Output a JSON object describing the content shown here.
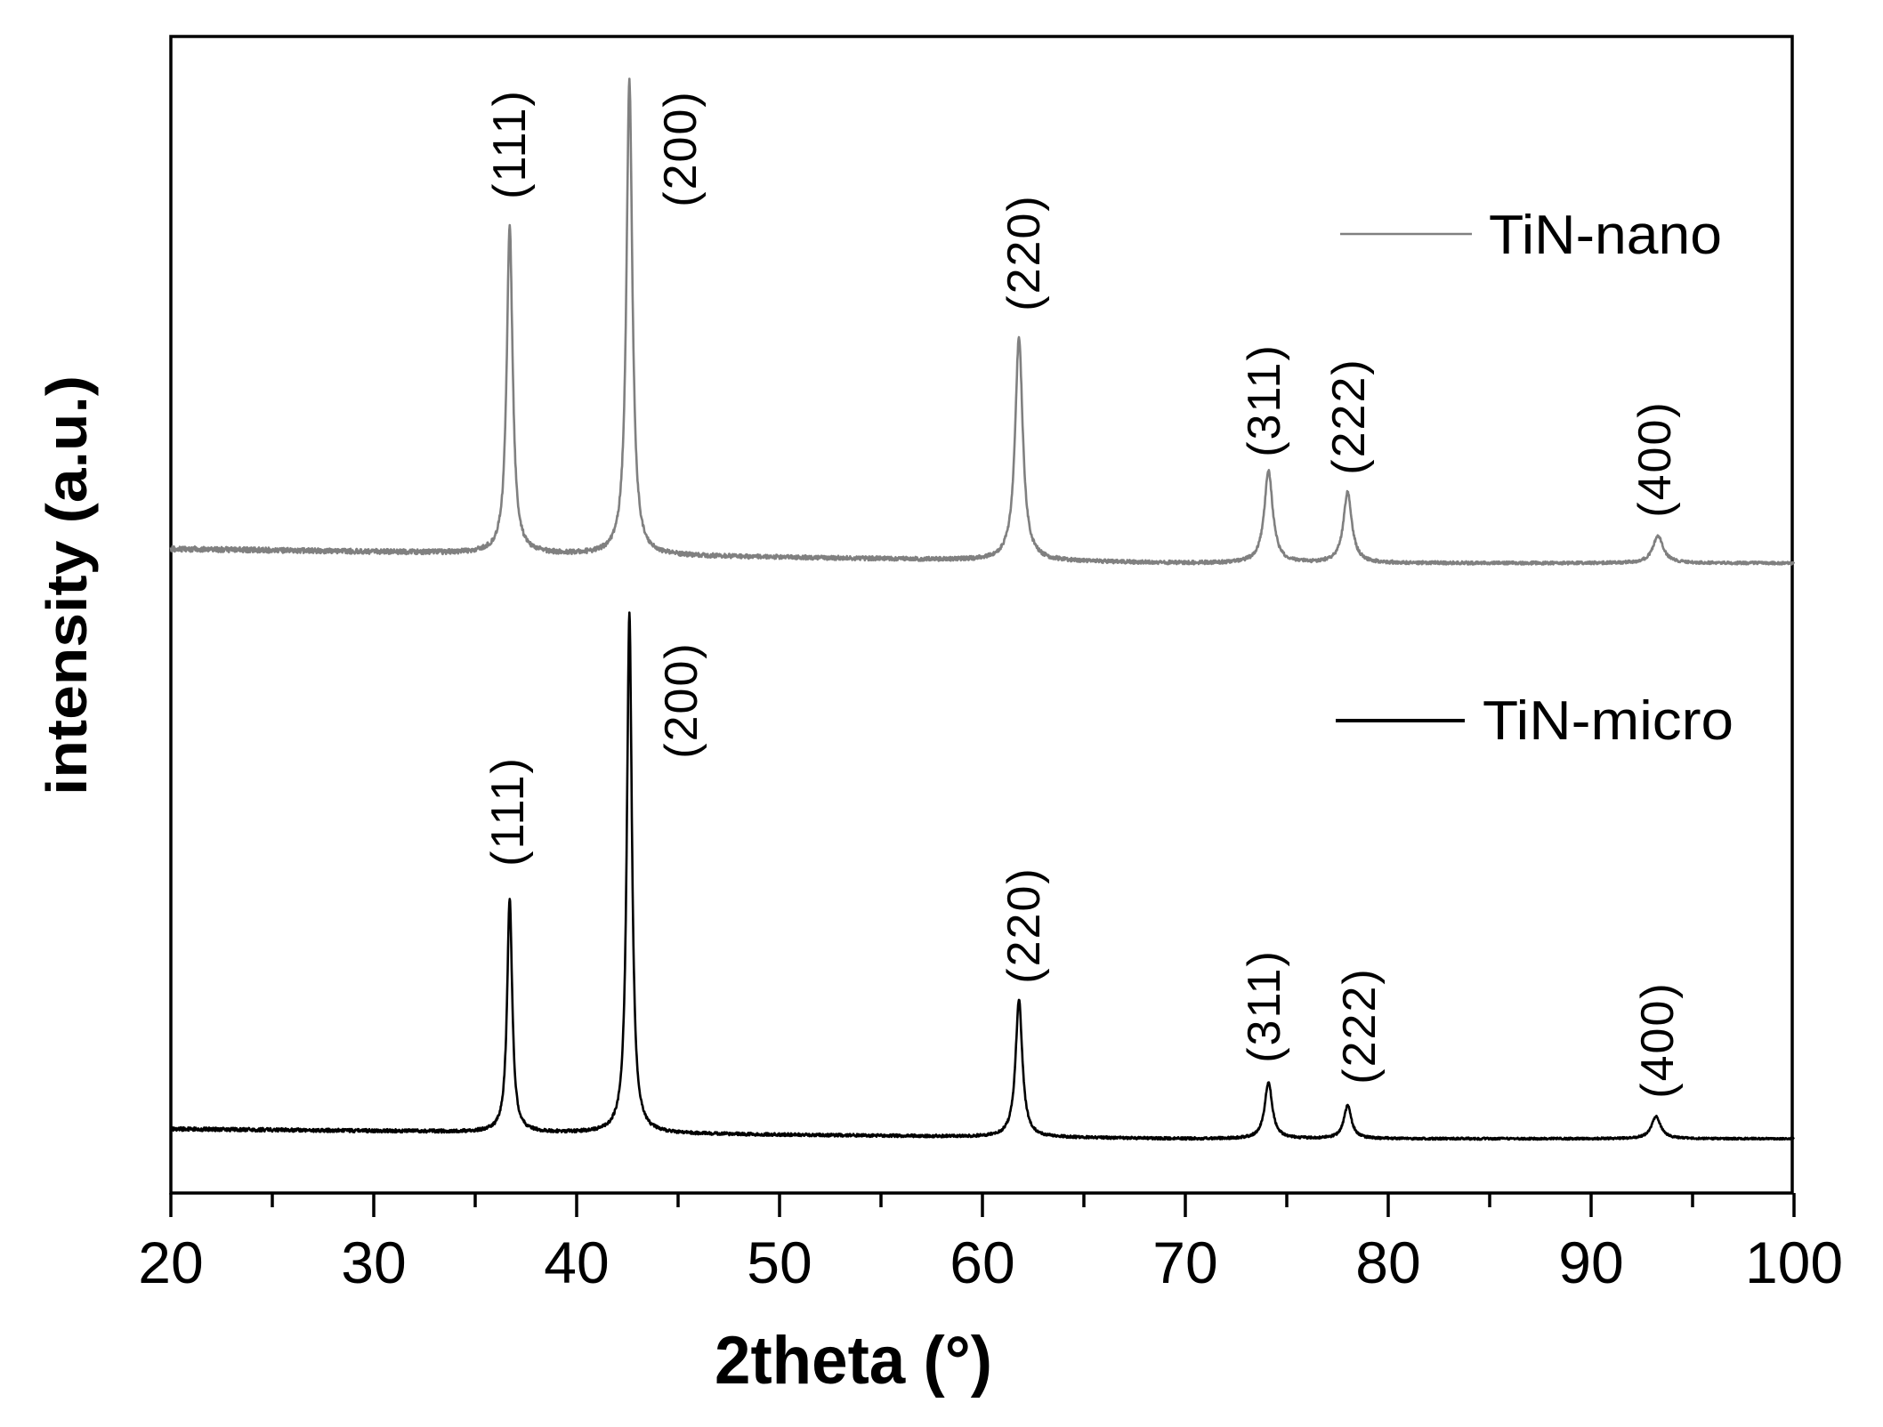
{
  "chart_data": {
    "type": "line",
    "title": "",
    "xlabel": "2theta (°)",
    "ylabel": "intensity (a.u.)",
    "xlim": [
      20,
      100
    ],
    "x_ticks": [
      20,
      30,
      40,
      50,
      60,
      70,
      80,
      90,
      100
    ],
    "x_minor_ticks": [
      25,
      35,
      45,
      55,
      65,
      75,
      85,
      95
    ],
    "y_ticks": [],
    "grid": false,
    "legend_position": "inside-right",
    "series": [
      {
        "name": "TiN-nano",
        "color": "#808080",
        "offset": 1.0,
        "baseline_start": 0.0,
        "baseline_end": -0.03,
        "peaks": [
          {
            "hkl": "(111)",
            "two_theta": 36.7,
            "intensity": 367,
            "fwhm": 0.35
          },
          {
            "hkl": "(200)",
            "two_theta": 42.6,
            "intensity": 534,
            "fwhm": 0.35
          },
          {
            "hkl": "(220)",
            "two_theta": 61.8,
            "intensity": 251,
            "fwhm": 0.45
          },
          {
            "hkl": "(311)",
            "two_theta": 74.1,
            "intensity": 103,
            "fwhm": 0.5
          },
          {
            "hkl": "(222)",
            "two_theta": 78.0,
            "intensity": 79,
            "fwhm": 0.5
          },
          {
            "hkl": "(400)",
            "two_theta": 93.3,
            "intensity": 31,
            "fwhm": 0.6
          }
        ]
      },
      {
        "name": "TiN-micro",
        "color": "#000000",
        "offset": 0.0,
        "baseline_start": 0.0,
        "baseline_end": -0.02,
        "peaks": [
          {
            "hkl": "(111)",
            "two_theta": 36.7,
            "intensity": 263,
            "fwhm": 0.3
          },
          {
            "hkl": "(200)",
            "two_theta": 42.6,
            "intensity": 585,
            "fwhm": 0.3
          },
          {
            "hkl": "(220)",
            "two_theta": 61.8,
            "intensity": 154,
            "fwhm": 0.4
          },
          {
            "hkl": "(311)",
            "two_theta": 74.1,
            "intensity": 63,
            "fwhm": 0.45
          },
          {
            "hkl": "(222)",
            "two_theta": 78.0,
            "intensity": 37,
            "fwhm": 0.45
          },
          {
            "hkl": "(400)",
            "two_theta": 93.2,
            "intensity": 25,
            "fwhm": 0.55
          }
        ]
      }
    ],
    "annotations": [
      {
        "series": "TiN-nano",
        "text": "(111)",
        "two_theta": 36.7
      },
      {
        "series": "TiN-nano",
        "text": "(200)",
        "two_theta": 45.1
      },
      {
        "series": "TiN-nano",
        "text": "(220)",
        "two_theta": 61.9
      },
      {
        "series": "TiN-nano",
        "text": "(311)",
        "two_theta": 73.8
      },
      {
        "series": "TiN-nano",
        "text": "(222)",
        "two_theta": 78.0
      },
      {
        "series": "TiN-nano",
        "text": "(400)",
        "two_theta": 93.1
      },
      {
        "series": "TiN-micro",
        "text": "(111)",
        "two_theta": 36.6
      },
      {
        "series": "TiN-micro",
        "text": "(200)",
        "two_theta": 45.1
      },
      {
        "series": "TiN-micro",
        "text": "(220)",
        "two_theta": 61.9
      },
      {
        "series": "TiN-micro",
        "text": "(311)",
        "two_theta": 73.8
      },
      {
        "series": "TiN-micro",
        "text": "(222)",
        "two_theta": 78.5
      },
      {
        "series": "TiN-micro",
        "text": "(400)",
        "two_theta": 93.2
      }
    ]
  },
  "axes": {
    "x_title": "2theta (°)",
    "y_title": "intensity (a.u.)",
    "x_tick_labels": [
      "20",
      "30",
      "40",
      "50",
      "60",
      "70",
      "80",
      "90",
      "100"
    ]
  },
  "legend": {
    "items": [
      {
        "label": "TiN-nano",
        "color": "#808080"
      },
      {
        "label": "TiN-micro",
        "color": "#000000"
      }
    ]
  },
  "labels": {
    "nano": [
      "(111)",
      "(200)",
      "(220)",
      "(311)",
      "(222)",
      "(400)"
    ],
    "micro": [
      "(111)",
      "(200)",
      "(220)",
      "(311)",
      "(222)",
      "(400)"
    ]
  }
}
